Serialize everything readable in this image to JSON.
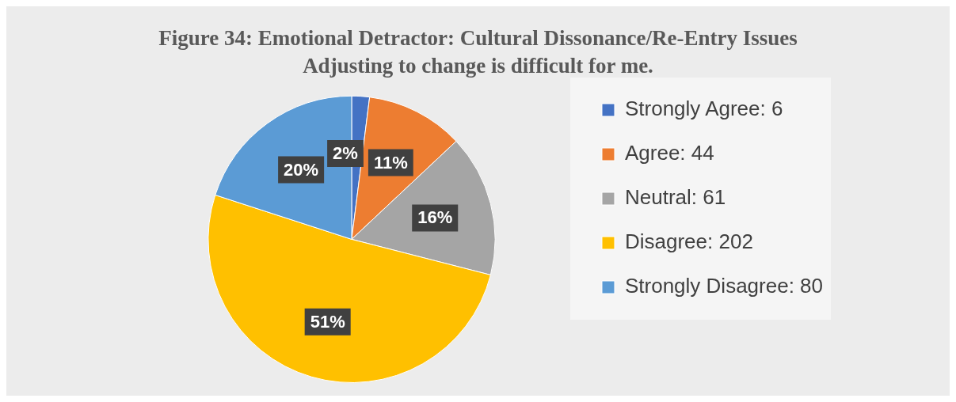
{
  "chart_data": {
    "type": "pie",
    "title": "Figure 34: Emotional Detractor: Cultural Dissonance/Re-Entry Issues",
    "subtitle": "Adjusting to change is difficult for me.",
    "categories": [
      "Strongly Agree: 6",
      "Agree: 44",
      "Neutral: 61",
      "Disagree: 202",
      "Strongly Disagree: 80"
    ],
    "values": [
      2,
      11,
      16,
      51,
      20
    ],
    "value_labels": [
      "2%",
      "11%",
      "16%",
      "51%",
      "20%"
    ],
    "colors": [
      "#4472c4",
      "#ed7d31",
      "#a5a5a5",
      "#ffc000",
      "#5b9bd5"
    ],
    "legend": "right"
  }
}
